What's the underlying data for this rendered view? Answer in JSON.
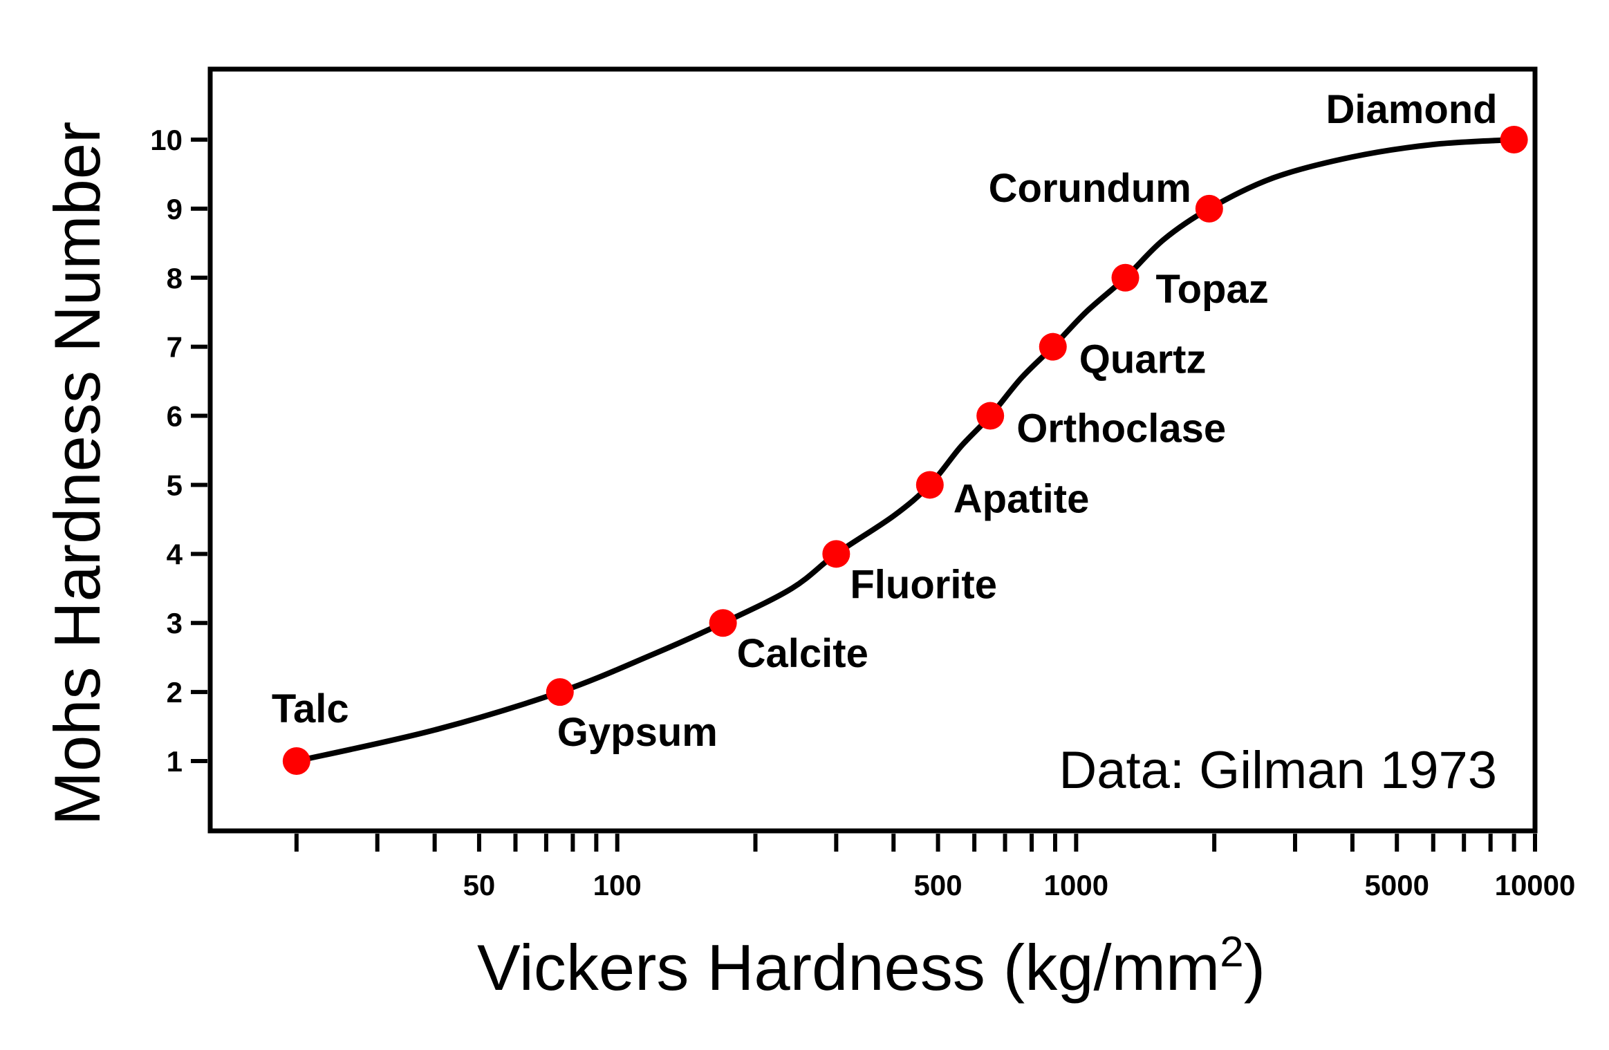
{
  "chart_data": {
    "type": "scatter",
    "xscale": "log",
    "xlabel": "Vickers Hardness (kg/mm",
    "xlabel_sup": "2",
    "xlabel_end": ")",
    "ylabel": "Mohs Hardness Number",
    "xlim": [
      17,
      10000
    ],
    "ylim": [
      0,
      11
    ],
    "x_tick_labels": [
      "50",
      "100",
      "500",
      "1000",
      "5000",
      "10000"
    ],
    "y_tick_labels": [
      "1",
      "2",
      "3",
      "4",
      "5",
      "6",
      "7",
      "8",
      "9",
      "10"
    ],
    "annotation": "Data: Gilman 1973",
    "marker_color": "#ff0000",
    "line_color": "#000000",
    "points": [
      {
        "name": "Talc",
        "x": 20,
        "y": 1
      },
      {
        "name": "Gypsum",
        "x": 75,
        "y": 2
      },
      {
        "name": "Calcite",
        "x": 170,
        "y": 3
      },
      {
        "name": "Fluorite",
        "x": 300,
        "y": 4
      },
      {
        "name": "Apatite",
        "x": 480,
        "y": 5
      },
      {
        "name": "Orthoclase",
        "x": 650,
        "y": 6
      },
      {
        "name": "Quartz",
        "x": 890,
        "y": 7
      },
      {
        "name": "Topaz",
        "x": 1280,
        "y": 8
      },
      {
        "name": "Corundum",
        "x": 1950,
        "y": 9
      },
      {
        "name": "Diamond",
        "x": 9000,
        "y": 10
      }
    ],
    "curve": [
      [
        20,
        1
      ],
      [
        40,
        1.45
      ],
      [
        75,
        2
      ],
      [
        120,
        2.55
      ],
      [
        170,
        3
      ],
      [
        240,
        3.5
      ],
      [
        300,
        4
      ],
      [
        400,
        4.55
      ],
      [
        480,
        5
      ],
      [
        560,
        5.55
      ],
      [
        650,
        6
      ],
      [
        760,
        6.55
      ],
      [
        890,
        7
      ],
      [
        1050,
        7.5
      ],
      [
        1280,
        8
      ],
      [
        1550,
        8.55
      ],
      [
        1950,
        9
      ],
      [
        2700,
        9.45
      ],
      [
        4000,
        9.75
      ],
      [
        6000,
        9.93
      ],
      [
        9000,
        10
      ]
    ]
  }
}
